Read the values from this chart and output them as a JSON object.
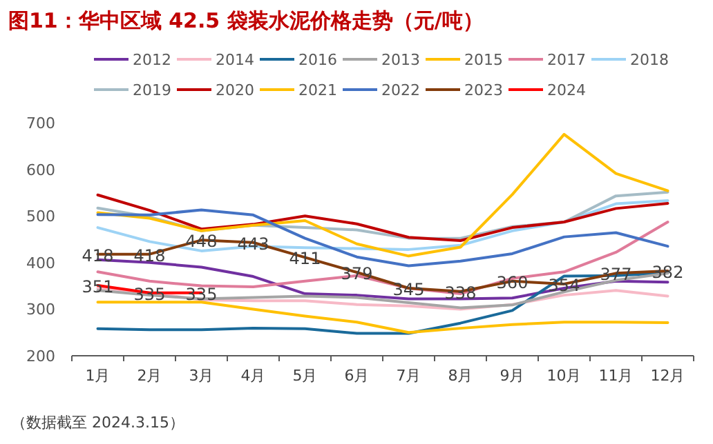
{
  "chart_data": {
    "type": "line",
    "title": "图11：华中区域 42.5 袋装水泥价格走势（元/吨）",
    "annotations": [
      "（数据截至 2024.3.15）"
    ],
    "legend": "top",
    "ylim": [
      200,
      700
    ],
    "yticks": [
      200,
      300,
      400,
      500,
      600,
      700
    ],
    "categories": [
      "1月",
      "2月",
      "3月",
      "4月",
      "5月",
      "6月",
      "7月",
      "8月",
      "9月",
      "10月",
      "11月",
      "12月"
    ],
    "series": [
      {
        "name": "2012",
        "color": "#7030a0",
        "values": [
          406,
          400,
          390,
          370,
          333,
          330,
          322,
          322,
          324,
          345,
          360,
          358
        ]
      },
      {
        "name": "2014",
        "color": "#f7b9c6",
        "values": [
          345,
          335,
          320,
          318,
          318,
          310,
          307,
          300,
          310,
          330,
          340,
          328
        ]
      },
      {
        "name": "2016",
        "color": "#1a6a9a",
        "values": [
          258,
          256,
          256,
          259,
          258,
          248,
          248,
          270,
          297,
          371,
          372,
          378
        ]
      },
      {
        "name": "2013",
        "color": "#a5a5a5",
        "values": [
          340,
          330,
          322,
          325,
          328,
          325,
          314,
          303,
          309,
          337,
          362,
          377
        ]
      },
      {
        "name": "2015",
        "color": "#ffc000",
        "values": [
          315,
          315,
          315,
          300,
          285,
          272,
          250,
          259,
          267,
          272,
          272,
          271
        ]
      },
      {
        "name": "2017",
        "color": "#e07b9a",
        "values": [
          380,
          360,
          350,
          348,
          360,
          372,
          345,
          333,
          366,
          380,
          422,
          487
        ]
      },
      {
        "name": "2018",
        "color": "#9dd3f5",
        "values": [
          475,
          445,
          425,
          435,
          432,
          430,
          428,
          437,
          468,
          487,
          526,
          533
        ]
      },
      {
        "name": "2019",
        "color": "#a5bcc6",
        "values": [
          517,
          498,
          468,
          480,
          475,
          470,
          452,
          452,
          477,
          487,
          543,
          551
        ]
      },
      {
        "name": "2020",
        "color": "#c00000",
        "values": [
          545,
          512,
          472,
          482,
          500,
          483,
          454,
          447,
          475,
          487,
          516,
          527
        ]
      },
      {
        "name": "2021",
        "color": "#ffc000",
        "values": [
          507,
          495,
          468,
          480,
          490,
          440,
          414,
          433,
          546,
          675,
          591,
          554
        ]
      },
      {
        "name": "2022",
        "color": "#4472c4",
        "values": [
          503,
          502,
          513,
          502,
          452,
          412,
          393,
          403,
          419,
          455,
          464,
          435
        ]
      },
      {
        "name": "2023",
        "color": "#843c0c",
        "values": [
          418,
          418,
          448,
          443,
          411,
          379,
          345,
          338,
          360,
          354,
          377,
          382
        ],
        "value_labels": [
          "418",
          "418",
          "448",
          "443",
          "411",
          "379",
          "345",
          "338",
          "360",
          "354",
          "377",
          "382"
        ]
      },
      {
        "name": "2024",
        "color": "#ff0000",
        "values": [
          351,
          335,
          335,
          null,
          null,
          null,
          null,
          null,
          null,
          null,
          null,
          null
        ],
        "value_labels": [
          "351",
          "335",
          "335",
          null,
          null,
          null,
          null,
          null,
          null,
          null,
          null,
          null
        ]
      }
    ]
  }
}
